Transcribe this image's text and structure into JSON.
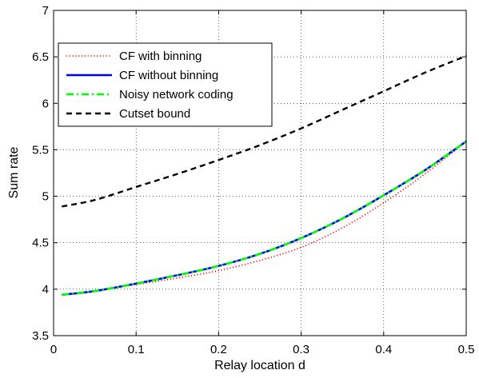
{
  "chart_data": {
    "type": "line",
    "title": "",
    "xlabel": "Relay location d",
    "ylabel": "Sum rate",
    "xlim": [
      0,
      0.5
    ],
    "ylim": [
      3.5,
      7
    ],
    "grid": true,
    "legend_position": "top-left",
    "x_ticks": [
      0,
      0.1,
      0.2,
      0.3,
      0.4,
      0.5
    ],
    "x_tick_labels": [
      "0",
      "0.1",
      "0.2",
      "0.3",
      "0.4",
      "0.5"
    ],
    "y_ticks": [
      3.5,
      4,
      4.5,
      5,
      5.5,
      6,
      6.5,
      7
    ],
    "y_tick_labels": [
      "3.5",
      "4",
      "4.5",
      "5",
      "5.5",
      "6",
      "6.5",
      "7"
    ],
    "x": [
      0.01,
      0.05,
      0.1,
      0.15,
      0.2,
      0.25,
      0.3,
      0.35,
      0.4,
      0.45,
      0.5
    ],
    "series": [
      {
        "name": "CF with binning",
        "color": "#ff0000",
        "style": "dotted",
        "values": [
          3.94,
          3.98,
          4.05,
          4.12,
          4.2,
          4.31,
          4.45,
          4.66,
          4.93,
          5.24,
          5.59
        ]
      },
      {
        "name": "CF without binning",
        "color": "#0000ff",
        "style": "solid",
        "values": [
          3.94,
          3.98,
          4.06,
          4.15,
          4.25,
          4.38,
          4.55,
          4.76,
          5.01,
          5.28,
          5.59
        ]
      },
      {
        "name": "Noisy network coding",
        "color": "#00ff00",
        "style": "dashdot",
        "values": [
          3.94,
          3.98,
          4.06,
          4.15,
          4.25,
          4.38,
          4.55,
          4.76,
          5.01,
          5.28,
          5.59
        ]
      },
      {
        "name": "Cutset bound",
        "color": "#000000",
        "style": "dashed",
        "values": [
          4.89,
          4.96,
          5.1,
          5.24,
          5.39,
          5.55,
          5.73,
          5.93,
          6.13,
          6.33,
          6.51
        ]
      }
    ]
  }
}
